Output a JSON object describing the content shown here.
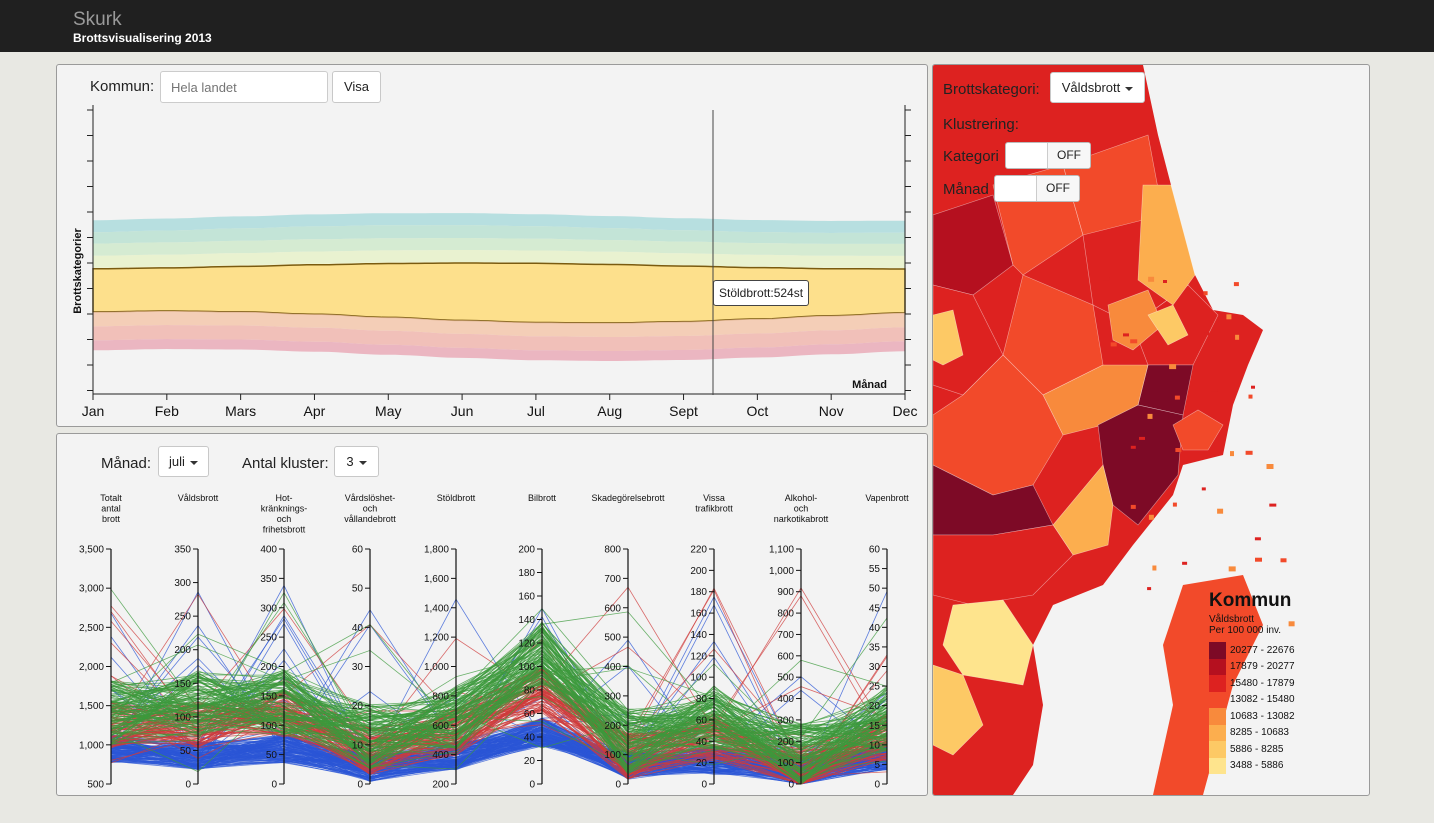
{
  "app": {
    "name": "Skurk",
    "subtitle": "Brottsvisualisering 2013"
  },
  "stream": {
    "kommun_label": "Kommun:",
    "kommun_placeholder": "Hela landet",
    "visa_label": "Visa",
    "y_axis_label": "Brottskategorier",
    "x_axis_label": "Månad",
    "months": [
      "Jan",
      "Feb",
      "Mars",
      "Apr",
      "May",
      "Jun",
      "Jul",
      "Aug",
      "Sept",
      "Oct",
      "Nov",
      "Dec"
    ],
    "tooltip": "Stöldbrott:524st",
    "layer_colors": [
      "#e8a6b4",
      "#f0b3aa",
      "#f4c4a8",
      "#fde08c",
      "#f4f5c4",
      "#e6f1c7",
      "#cde9c9",
      "#b6e0d0",
      "#a7dadb"
    ]
  },
  "parallel": {
    "month_label": "Månad:",
    "month_value": "juli",
    "clusters_label": "Antal kluster:",
    "clusters_value": "3",
    "axes": [
      {
        "label": "Totalt\nantal\nbrott",
        "ticks": [
          "3,500",
          "3,000",
          "2,500",
          "2,000",
          "1,500",
          "1,000",
          "500"
        ]
      },
      {
        "label": "Våldsbrott",
        "ticks": [
          "350",
          "300",
          "250",
          "200",
          "150",
          "100",
          "50",
          "0"
        ]
      },
      {
        "label": "Hot-\nkränknings-\noch\nfrihetsbrott",
        "ticks": [
          "400",
          "350",
          "300",
          "250",
          "200",
          "150",
          "100",
          "50",
          "0"
        ]
      },
      {
        "label": "Vårdslöshet-\noch\nvållandebrott",
        "ticks": [
          "60",
          "50",
          "40",
          "30",
          "20",
          "10",
          "0"
        ]
      },
      {
        "label": "Stöldbrott",
        "ticks": [
          "1,800",
          "1,600",
          "1,400",
          "1,200",
          "1,000",
          "800",
          "600",
          "400",
          "200"
        ]
      },
      {
        "label": "Bilbrott",
        "ticks": [
          "200",
          "180",
          "160",
          "140",
          "120",
          "100",
          "80",
          "60",
          "40",
          "20",
          "0"
        ]
      },
      {
        "label": "Skadegörelsebrott",
        "ticks": [
          "800",
          "700",
          "600",
          "500",
          "400",
          "300",
          "200",
          "100",
          "0"
        ]
      },
      {
        "label": "Vissa\ntrafikbrott",
        "ticks": [
          "220",
          "200",
          "180",
          "160",
          "140",
          "120",
          "100",
          "80",
          "60",
          "40",
          "20",
          "0"
        ]
      },
      {
        "label": "Alkohol-\noch\nnarkotikabrott",
        "ticks": [
          "1,100",
          "1,000",
          "900",
          "800",
          "700",
          "600",
          "500",
          "400",
          "300",
          "200",
          "100",
          "0"
        ]
      },
      {
        "label": "Vapenbrott",
        "ticks": [
          "60",
          "55",
          "50",
          "45",
          "40",
          "35",
          "30",
          "25",
          "20",
          "15",
          "10",
          "5",
          "0"
        ]
      }
    ],
    "cluster_colors": [
      "#2b55d6",
      "#cf3b3b",
      "#3c9a3c"
    ]
  },
  "map": {
    "category_label": "Brottskategori:",
    "category_value": "Våldsbrott",
    "clustering_label": "Klustrering:",
    "kategori_label": "Kategori",
    "kategori_toggle": "OFF",
    "manad_label": "Månad",
    "manad_toggle": "OFF",
    "legend": {
      "title": "Kommun",
      "subtitle1": "Våldsbrott",
      "subtitle2": "Per 100 000 inv.",
      "items": [
        {
          "range": "20277 - 22676",
          "color": "#7d0a26"
        },
        {
          "range": "17879 - 20277",
          "color": "#b5101f"
        },
        {
          "range": "15480 - 17879",
          "color": "#dd2220"
        },
        {
          "range": "13082 - 15480",
          "color": "#f24a2a"
        },
        {
          "range": "10683 - 13082",
          "color": "#f88a3c"
        },
        {
          "range": "8285 - 10683",
          "color": "#fcae4e"
        },
        {
          "range": "5886 - 8285",
          "color": "#fdc965"
        },
        {
          "range": "3488 - 5886",
          "color": "#fee48d"
        }
      ]
    }
  }
}
